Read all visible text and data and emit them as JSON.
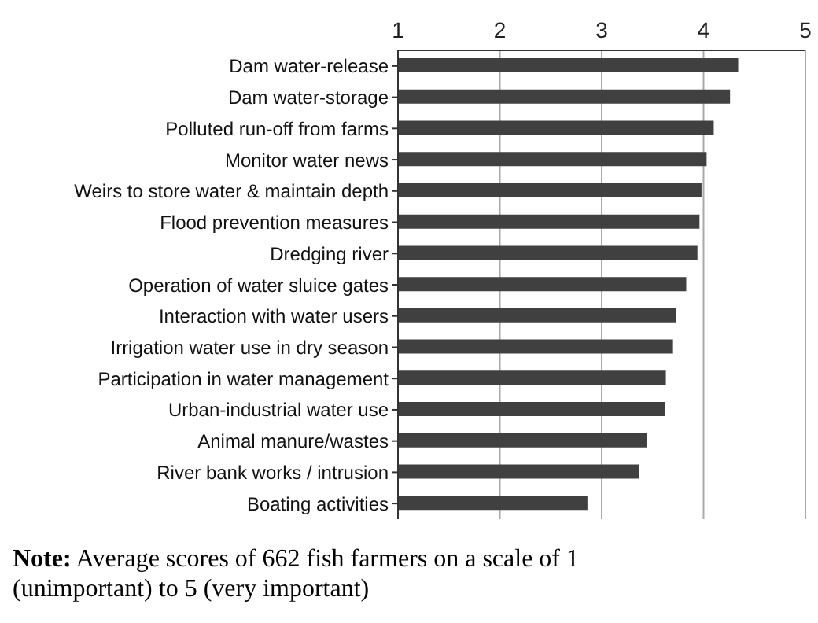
{
  "chart_data": {
    "type": "bar",
    "orientation": "horizontal",
    "categories": [
      "Dam water-release",
      "Dam water-storage",
      "Polluted run-off from farms",
      "Monitor water news",
      "Weirs to store water & maintain depth",
      "Flood prevention measures",
      "Dredging river",
      "Operation of water sluice gates",
      "Interaction with water users",
      "Irrigation water use in dry season",
      "Participation in water management",
      "Urban-industrial water use",
      "Animal manure/wastes",
      "River bank works / intrusion",
      "Boating activities"
    ],
    "values": [
      4.34,
      4.26,
      4.1,
      4.03,
      3.98,
      3.96,
      3.94,
      3.83,
      3.73,
      3.7,
      3.63,
      3.62,
      3.44,
      3.37,
      2.86
    ],
    "color": "#404040",
    "xlim": [
      1,
      5
    ],
    "xticks": [
      1,
      2,
      3,
      4,
      5
    ],
    "grid": "x",
    "annotations": [
      "Note: Average scores of 662 fish farmers on a scale of 1 (unimportant) to 5 (very important)"
    ]
  }
}
